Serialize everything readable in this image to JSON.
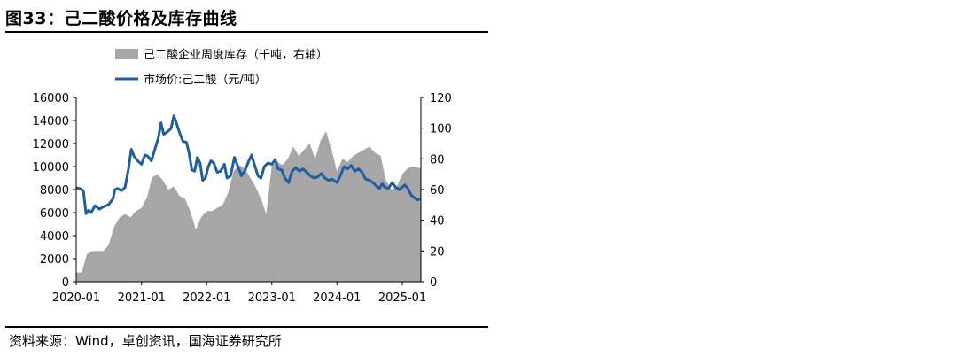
{
  "figure_title": "图33：己二酸价格及库存曲线",
  "source": "资料来源：Wind，卓创资讯，国海证券研究所",
  "chart_data": {
    "type": "area",
    "grid": false,
    "legend_position": "top-left",
    "x_ticks": [
      "2020-01",
      "2021-01",
      "2022-01",
      "2023-01",
      "2024-01",
      "2025-01"
    ],
    "x_range": [
      "2020-01-01",
      "2025-04-15"
    ],
    "y_left": {
      "range": [
        0,
        16000
      ],
      "ticks": [
        "0",
        "2000",
        "4000",
        "6000",
        "8000",
        "10000",
        "12000",
        "14000",
        "16000"
      ]
    },
    "y_right": {
      "range": [
        0,
        120
      ],
      "ticks": [
        "0",
        "20",
        "40",
        "60",
        "80",
        "100",
        "120"
      ]
    },
    "series": [
      {
        "name": "己二酸企业周度库存（千吨，右轴）",
        "type": "area",
        "axis": "right",
        "color": "#a6a6a6",
        "points": [
          [
            "2020-01-01",
            6
          ],
          [
            "2020-02-01",
            6
          ],
          [
            "2020-03-01",
            18
          ],
          [
            "2020-04-01",
            20
          ],
          [
            "2020-05-01",
            20
          ],
          [
            "2020-06-01",
            20
          ],
          [
            "2020-07-01",
            24
          ],
          [
            "2020-08-01",
            36
          ],
          [
            "2020-09-01",
            42
          ],
          [
            "2020-10-01",
            44
          ],
          [
            "2020-11-01",
            42
          ],
          [
            "2020-12-01",
            46
          ],
          [
            "2021-01-01",
            48
          ],
          [
            "2021-02-01",
            55
          ],
          [
            "2021-03-01",
            68
          ],
          [
            "2021-04-01",
            70
          ],
          [
            "2021-05-01",
            66
          ],
          [
            "2021-06-01",
            60
          ],
          [
            "2021-07-01",
            62
          ],
          [
            "2021-08-01",
            56
          ],
          [
            "2021-09-01",
            54
          ],
          [
            "2021-10-01",
            46
          ],
          [
            "2021-11-01",
            34
          ],
          [
            "2021-12-01",
            42
          ],
          [
            "2022-01-01",
            46
          ],
          [
            "2022-02-01",
            46
          ],
          [
            "2022-03-01",
            48
          ],
          [
            "2022-04-01",
            50
          ],
          [
            "2022-05-01",
            58
          ],
          [
            "2022-06-01",
            72
          ],
          [
            "2022-07-01",
            76
          ],
          [
            "2022-08-01",
            74
          ],
          [
            "2022-09-01",
            68
          ],
          [
            "2022-10-01",
            62
          ],
          [
            "2022-11-01",
            54
          ],
          [
            "2022-12-01",
            44
          ],
          [
            "2023-01-01",
            76
          ],
          [
            "2023-02-01",
            78
          ],
          [
            "2023-03-01",
            76
          ],
          [
            "2023-04-01",
            80
          ],
          [
            "2023-05-01",
            88
          ],
          [
            "2023-06-01",
            82
          ],
          [
            "2023-07-01",
            86
          ],
          [
            "2023-08-01",
            90
          ],
          [
            "2023-09-01",
            80
          ],
          [
            "2023-10-01",
            92
          ],
          [
            "2023-11-01",
            98
          ],
          [
            "2023-12-01",
            86
          ],
          [
            "2024-01-01",
            72
          ],
          [
            "2024-02-01",
            80
          ],
          [
            "2024-03-01",
            78
          ],
          [
            "2024-04-01",
            82
          ],
          [
            "2024-05-01",
            84
          ],
          [
            "2024-06-01",
            86
          ],
          [
            "2024-07-01",
            88
          ],
          [
            "2024-08-01",
            84
          ],
          [
            "2024-09-01",
            82
          ],
          [
            "2024-10-01",
            66
          ],
          [
            "2024-11-01",
            60
          ],
          [
            "2024-12-01",
            62
          ],
          [
            "2025-01-01",
            70
          ],
          [
            "2025-02-01",
            74
          ],
          [
            "2025-03-01",
            75
          ],
          [
            "2025-04-15",
            74
          ]
        ]
      },
      {
        "name": "市场价:己二酸（元/吨）",
        "type": "line",
        "axis": "left",
        "color": "#1f5fa0",
        "points": [
          [
            "2020-01-01",
            8150
          ],
          [
            "2020-01-20",
            8100
          ],
          [
            "2020-02-10",
            7900
          ],
          [
            "2020-02-25",
            5900
          ],
          [
            "2020-03-10",
            6200
          ],
          [
            "2020-03-25",
            6000
          ],
          [
            "2020-04-15",
            6600
          ],
          [
            "2020-05-10",
            6300
          ],
          [
            "2020-06-01",
            6500
          ],
          [
            "2020-07-01",
            6700
          ],
          [
            "2020-07-25",
            7200
          ],
          [
            "2020-08-05",
            8000
          ],
          [
            "2020-08-20",
            8100
          ],
          [
            "2020-09-10",
            7900
          ],
          [
            "2020-10-01",
            8200
          ],
          [
            "2020-10-20",
            9800
          ],
          [
            "2020-11-05",
            11500
          ],
          [
            "2020-11-20",
            10900
          ],
          [
            "2020-12-10",
            10500
          ],
          [
            "2021-01-01",
            10200
          ],
          [
            "2021-01-20",
            11000
          ],
          [
            "2021-02-05",
            10900
          ],
          [
            "2021-02-25",
            10500
          ],
          [
            "2021-03-15",
            11400
          ],
          [
            "2021-04-05",
            12500
          ],
          [
            "2021-04-20",
            13800
          ],
          [
            "2021-05-05",
            12800
          ],
          [
            "2021-05-25",
            13000
          ],
          [
            "2021-06-15",
            13300
          ],
          [
            "2021-07-01",
            14400
          ],
          [
            "2021-07-15",
            13800
          ],
          [
            "2021-08-01",
            13000
          ],
          [
            "2021-08-20",
            12200
          ],
          [
            "2021-09-10",
            12100
          ],
          [
            "2021-09-25",
            11100
          ],
          [
            "2021-10-10",
            9700
          ],
          [
            "2021-10-25",
            9600
          ],
          [
            "2021-11-10",
            10800
          ],
          [
            "2021-11-25",
            10300
          ],
          [
            "2021-12-10",
            8800
          ],
          [
            "2021-12-25",
            9000
          ],
          [
            "2022-01-10",
            10000
          ],
          [
            "2022-01-25",
            10500
          ],
          [
            "2022-02-10",
            10300
          ],
          [
            "2022-03-01",
            9500
          ],
          [
            "2022-03-20",
            9600
          ],
          [
            "2022-04-10",
            10200
          ],
          [
            "2022-04-25",
            9000
          ],
          [
            "2022-05-15",
            9200
          ],
          [
            "2022-06-05",
            10800
          ],
          [
            "2022-06-25",
            10000
          ],
          [
            "2022-07-15",
            9200
          ],
          [
            "2022-08-05",
            9700
          ],
          [
            "2022-08-25",
            10500
          ],
          [
            "2022-09-10",
            11000
          ],
          [
            "2022-09-25",
            10200
          ],
          [
            "2022-10-15",
            9200
          ],
          [
            "2022-11-01",
            9000
          ],
          [
            "2022-11-20",
            10000
          ],
          [
            "2022-12-10",
            10300
          ],
          [
            "2023-01-01",
            10200
          ],
          [
            "2023-01-20",
            10600
          ],
          [
            "2023-02-05",
            9800
          ],
          [
            "2023-02-25",
            9700
          ],
          [
            "2023-03-15",
            9000
          ],
          [
            "2023-04-05",
            8600
          ],
          [
            "2023-04-25",
            9600
          ],
          [
            "2023-05-15",
            9900
          ],
          [
            "2023-06-05",
            9600
          ],
          [
            "2023-06-25",
            9800
          ],
          [
            "2023-07-15",
            9500
          ],
          [
            "2023-08-05",
            9200
          ],
          [
            "2023-08-25",
            9000
          ],
          [
            "2023-09-15",
            9100
          ],
          [
            "2023-10-05",
            9400
          ],
          [
            "2023-10-25",
            9000
          ],
          [
            "2023-11-15",
            8800
          ],
          [
            "2023-12-05",
            8900
          ],
          [
            "2024-01-01",
            8600
          ],
          [
            "2024-01-20",
            9200
          ],
          [
            "2024-02-10",
            10000
          ],
          [
            "2024-03-01",
            9800
          ],
          [
            "2024-03-20",
            10100
          ],
          [
            "2024-04-10",
            9600
          ],
          [
            "2024-05-01",
            9800
          ],
          [
            "2024-05-20",
            9500
          ],
          [
            "2024-06-10",
            8900
          ],
          [
            "2024-07-01",
            8800
          ],
          [
            "2024-07-20",
            8600
          ],
          [
            "2024-08-10",
            8300
          ],
          [
            "2024-08-25",
            8100
          ],
          [
            "2024-09-10",
            8500
          ],
          [
            "2024-09-25",
            8200
          ],
          [
            "2024-10-15",
            8100
          ],
          [
            "2024-11-05",
            8600
          ],
          [
            "2024-11-25",
            8200
          ],
          [
            "2024-12-15",
            8000
          ],
          [
            "2025-01-01",
            8200
          ],
          [
            "2025-01-15",
            8400
          ],
          [
            "2025-02-01",
            8100
          ],
          [
            "2025-02-20",
            7500
          ],
          [
            "2025-03-10",
            7300
          ],
          [
            "2025-03-25",
            7100
          ],
          [
            "2025-04-15",
            7200
          ]
        ]
      }
    ]
  }
}
